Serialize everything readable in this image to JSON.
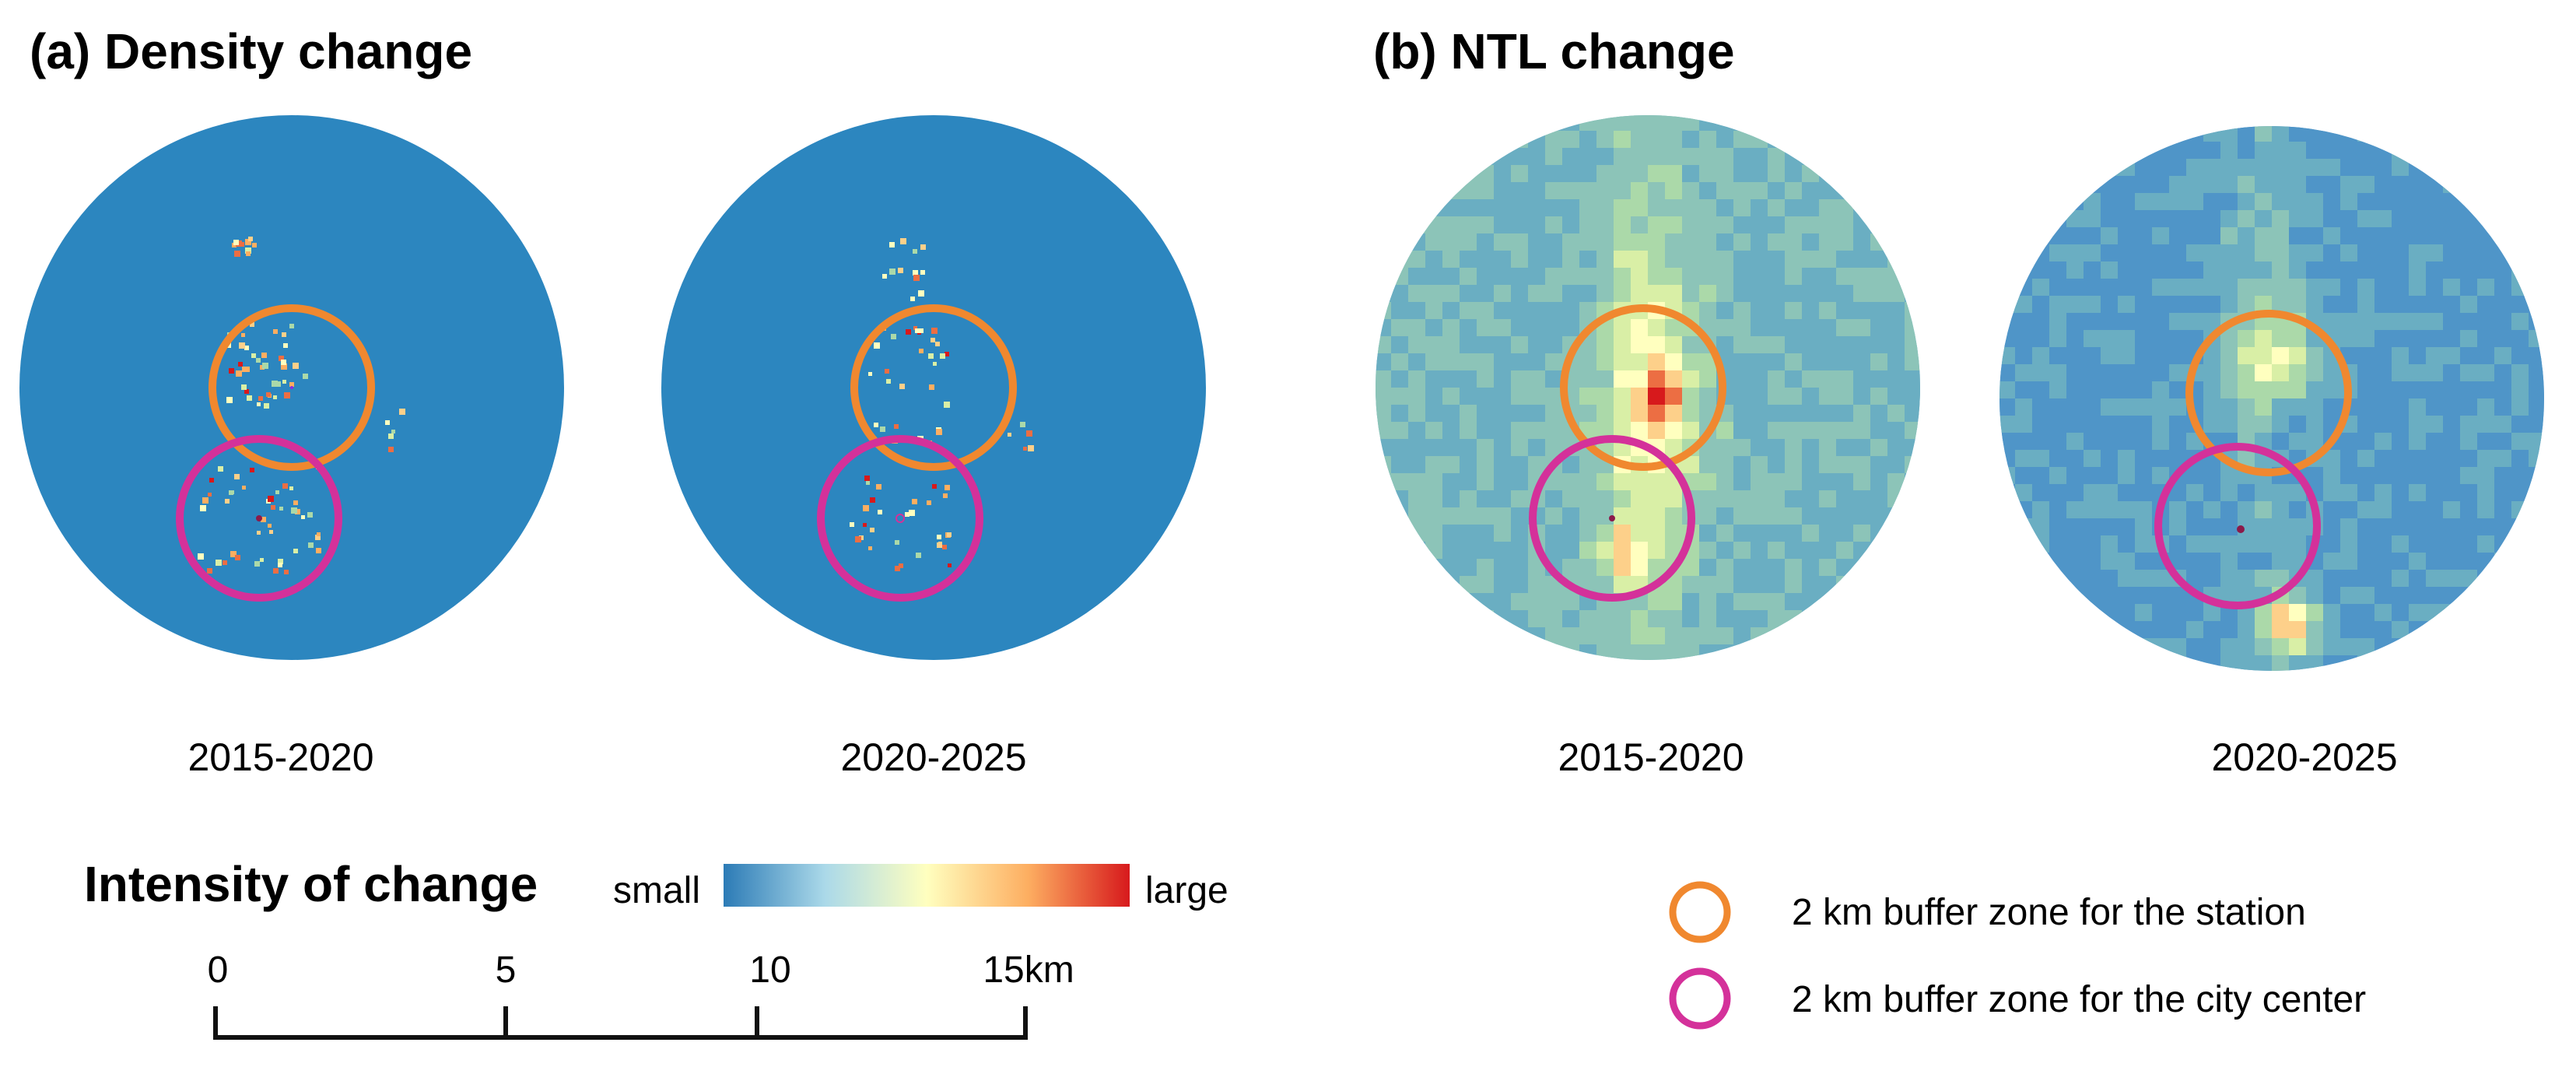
{
  "panels": {
    "density": {
      "title": "(a) Density change",
      "maps": [
        {
          "period": "2015-2020"
        },
        {
          "period": "2020-2025"
        }
      ]
    },
    "ntl": {
      "title": "(b) NTL change",
      "maps": [
        {
          "period": "2015-2020"
        },
        {
          "period": "2020-2025"
        }
      ]
    }
  },
  "intensity_legend": {
    "title": "Intensity of change",
    "low_label": "small",
    "high_label": "large",
    "colors": [
      "#2c7bb6",
      "#abd9e9",
      "#ffffbf",
      "#fdae61",
      "#d7191c"
    ]
  },
  "scale_bar": {
    "ticks": [
      "0",
      "5",
      "10",
      "15km"
    ]
  },
  "buffer_legend": {
    "station": {
      "label": "2 km buffer zone for the station",
      "color": "#f0882f"
    },
    "city_center": {
      "label": "2 km buffer zone for the city center",
      "color": "#d4319a"
    }
  },
  "colors": {
    "density_background": "#2c86bf"
  }
}
